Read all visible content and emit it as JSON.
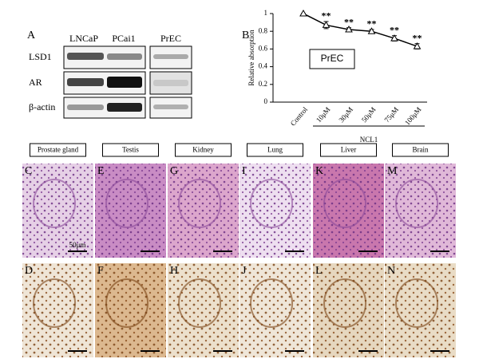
{
  "panel_a": {
    "label": "A",
    "lanes": [
      "LNCaP",
      "PCai1",
      "PrEC"
    ],
    "proteins": [
      "LSD1",
      "AR",
      "β-actin"
    ]
  },
  "chart_data": {
    "type": "line",
    "label": "B",
    "ylabel": "Relative absorption",
    "xlabel": "NCL1",
    "categories": [
      "Control",
      "10μM",
      "30μM",
      "50μM",
      "75μM",
      "100μM"
    ],
    "series": [
      {
        "name": "PrEC",
        "color": "#000000",
        "values": [
          1.0,
          0.87,
          0.82,
          0.8,
          0.72,
          0.63
        ],
        "errors": [
          0,
          0.04,
          0.02,
          0.02,
          0.03,
          0.03
        ]
      }
    ],
    "annotations": [
      null,
      "**",
      "**",
      "**",
      "**",
      "**"
    ],
    "ylim": [
      0,
      1
    ],
    "yticks": [
      0,
      0.2,
      0.4,
      0.6,
      0.8,
      1
    ]
  },
  "histology": {
    "tissues": [
      "Prostate gland",
      "Testis",
      "Kidney",
      "Lung",
      "Liver",
      "Brain"
    ],
    "he_panels": [
      "C",
      "E",
      "G",
      "I",
      "K",
      "M"
    ],
    "ihc_panels": [
      "D",
      "F",
      "H",
      "J",
      "L",
      "N"
    ],
    "scale_label": "50μm"
  }
}
